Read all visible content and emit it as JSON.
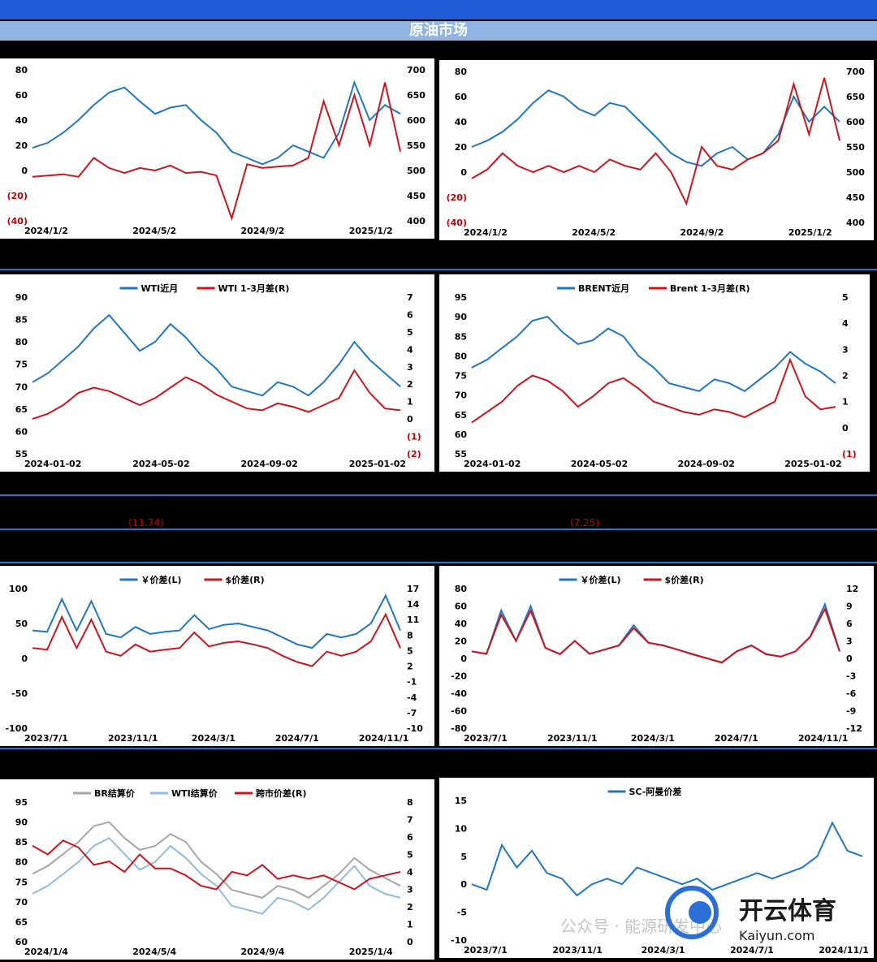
{
  "header": {
    "title": "原油市场"
  },
  "notes": {
    "left_value": "(11.74)",
    "right_value": "(7.25)"
  },
  "watermark": {
    "text": "公众号 · 能源研发中心"
  },
  "logo": {
    "text": "开云体育",
    "sub": "Kaiyun.com"
  },
  "colors": {
    "blue": "#1f77c2",
    "red": "#c8161d",
    "gray": "#a6a6a6",
    "lightblue": "#8fbbe0"
  },
  "chart_data": [
    {
      "id": "c1",
      "type": "line",
      "title": "",
      "x_ticks": [
        "2024/1/2",
        "2024/5/2",
        "2024/9/2",
        "2025/1/2"
      ],
      "y_left_ticks": [
        "80",
        "60",
        "40",
        "20",
        "0",
        "(20)",
        "(40)"
      ],
      "y_right_ticks": [
        "700",
        "650",
        "600",
        "550",
        "500",
        "450",
        "400"
      ],
      "ylim_left": [
        -40,
        80
      ],
      "ylim_right": [
        400,
        700
      ],
      "series": [
        {
          "name": "",
          "axis": "left",
          "color": "blue",
          "values": [
            18,
            22,
            30,
            40,
            52,
            62,
            66,
            55,
            45,
            50,
            52,
            40,
            30,
            15,
            10,
            5,
            10,
            20,
            15,
            10,
            30,
            70,
            40,
            52,
            45
          ]
        },
        {
          "name": "",
          "axis": "left",
          "color": "red",
          "values": [
            -5,
            -4,
            -3,
            -5,
            10,
            2,
            -2,
            2,
            0,
            4,
            -2,
            -1,
            -4,
            -38,
            5,
            2,
            3,
            4,
            10,
            55,
            20,
            60,
            20,
            70,
            15
          ]
        }
      ]
    },
    {
      "id": "c2",
      "type": "line",
      "title": "",
      "x_ticks": [
        "2024/1/2",
        "2024/5/2",
        "2024/9/2",
        "2025/1/2"
      ],
      "y_left_ticks": [
        "80",
        "60",
        "40",
        "20",
        "0",
        "(20)",
        "(40)"
      ],
      "y_right_ticks": [
        "700",
        "650",
        "600",
        "550",
        "500",
        "450",
        "400"
      ],
      "ylim_left": [
        -40,
        80
      ],
      "ylim_right": [
        400,
        700
      ],
      "series": [
        {
          "name": "",
          "axis": "left",
          "color": "blue",
          "values": [
            20,
            25,
            32,
            42,
            55,
            65,
            60,
            50,
            45,
            55,
            52,
            40,
            28,
            15,
            8,
            5,
            15,
            20,
            10,
            15,
            30,
            60,
            40,
            52,
            40
          ]
        },
        {
          "name": "",
          "axis": "left",
          "color": "red",
          "values": [
            -5,
            2,
            15,
            5,
            0,
            5,
            0,
            5,
            0,
            10,
            5,
            2,
            15,
            0,
            -25,
            20,
            5,
            2,
            10,
            15,
            25,
            70,
            30,
            75,
            25
          ]
        }
      ]
    },
    {
      "id": "c3",
      "type": "line",
      "title": "",
      "x_ticks": [
        "2024-01-02",
        "2024-05-02",
        "2024-09-02",
        "2025-01-02"
      ],
      "y_left_ticks": [
        "90",
        "85",
        "80",
        "75",
        "70",
        "65",
        "60",
        "55"
      ],
      "y_right_ticks": [
        "7",
        "6",
        "5",
        "4",
        "3",
        "2",
        "1",
        "0",
        "(1)",
        "(2)"
      ],
      "ylim_left": [
        55,
        90
      ],
      "ylim_right": [
        -2,
        7
      ],
      "legend": [
        "WTI近月",
        "WTI 1-3月差(R)"
      ],
      "series": [
        {
          "name": "WTI近月",
          "axis": "left",
          "color": "blue",
          "values": [
            71,
            73,
            76,
            79,
            83,
            86,
            82,
            78,
            80,
            84,
            81,
            77,
            74,
            70,
            69,
            68,
            71,
            70,
            68,
            71,
            75,
            80,
            76,
            73,
            70
          ]
        },
        {
          "name": "WTI 1-3月差(R)",
          "axis": "right",
          "color": "red",
          "values": [
            0,
            0.3,
            0.8,
            1.5,
            1.8,
            1.6,
            1.2,
            0.8,
            1.2,
            1.8,
            2.4,
            2.0,
            1.4,
            1.0,
            0.6,
            0.5,
            0.9,
            0.7,
            0.4,
            0.8,
            1.2,
            2.8,
            1.5,
            0.6,
            0.5
          ]
        }
      ]
    },
    {
      "id": "c4",
      "type": "line",
      "title": "",
      "x_ticks": [
        "2024-01-02",
        "2024-05-02",
        "2024-09-02",
        "2025-01-02"
      ],
      "y_left_ticks": [
        "95",
        "90",
        "85",
        "80",
        "75",
        "70",
        "65",
        "60",
        "55"
      ],
      "y_right_ticks": [
        "5",
        "4",
        "3",
        "2",
        "1",
        "0",
        "(1)"
      ],
      "ylim_left": [
        55,
        95
      ],
      "ylim_right": [
        -1,
        5
      ],
      "legend": [
        "BRENT近月",
        "Brent 1-3月差(R)"
      ],
      "series": [
        {
          "name": "BRENT近月",
          "axis": "left",
          "color": "blue",
          "values": [
            77,
            79,
            82,
            85,
            89,
            90,
            86,
            83,
            84,
            87,
            85,
            80,
            77,
            73,
            72,
            71,
            74,
            73,
            71,
            74,
            77,
            81,
            78,
            76,
            73
          ]
        },
        {
          "name": "Brent 1-3月差(R)",
          "axis": "right",
          "color": "red",
          "values": [
            0.2,
            0.6,
            1.0,
            1.6,
            2.0,
            1.8,
            1.4,
            0.8,
            1.2,
            1.7,
            1.9,
            1.5,
            1.0,
            0.8,
            0.6,
            0.5,
            0.7,
            0.6,
            0.4,
            0.7,
            1.0,
            2.6,
            1.2,
            0.7,
            0.8
          ]
        }
      ]
    },
    {
      "id": "c5",
      "type": "line",
      "title": "",
      "x_ticks": [
        "2023/7/1",
        "2023/11/1",
        "2024/3/1",
        "2024/7/1",
        "2024/11/1"
      ],
      "y_left_ticks": [
        "100",
        "50",
        "0",
        "-50",
        "-100"
      ],
      "y_right_ticks": [
        "17",
        "14",
        "11",
        "8",
        "5",
        "2",
        "-1",
        "-4",
        "-7",
        "-10"
      ],
      "ylim_left": [
        -100,
        100
      ],
      "ylim_right": [
        -10,
        17
      ],
      "legend": [
        "￥价差(L)",
        "$价差(R)"
      ],
      "series": [
        {
          "name": "￥价差(L)",
          "axis": "left",
          "color": "blue",
          "values": [
            40,
            38,
            85,
            40,
            82,
            35,
            30,
            45,
            35,
            38,
            40,
            62,
            42,
            48,
            50,
            45,
            40,
            30,
            20,
            15,
            35,
            30,
            35,
            50,
            90,
            40
          ]
        },
        {
          "name": "$价差(R)",
          "axis": "right",
          "color": "red",
          "values": [
            5.5,
            5.2,
            11.5,
            5.5,
            11,
            4.8,
            4.0,
            6.2,
            4.8,
            5.2,
            5.5,
            8.5,
            5.8,
            6.5,
            6.8,
            6.2,
            5.5,
            4.0,
            2.8,
            2.0,
            4.8,
            4.0,
            4.8,
            6.8,
            12,
            5.5
          ]
        }
      ]
    },
    {
      "id": "c6",
      "type": "line",
      "title": "",
      "x_ticks": [
        "2023/7/1",
        "2023/11/1",
        "2024/3/1",
        "2024/7/1",
        "2024/11/1"
      ],
      "y_left_ticks": [
        "80",
        "60",
        "40",
        "20",
        "0",
        "-20",
        "-40",
        "-60",
        "-80"
      ],
      "y_right_ticks": [
        "12",
        "9",
        "6",
        "3",
        "0",
        "-3",
        "-6",
        "-9",
        "-12"
      ],
      "ylim_left": [
        -80,
        80
      ],
      "ylim_right": [
        -12,
        12
      ],
      "legend": [
        "￥价差(L)",
        "$价差(R)"
      ],
      "series": [
        {
          "name": "￥价差(L)",
          "axis": "left",
          "color": "blue",
          "values": [
            8,
            5,
            55,
            20,
            60,
            12,
            5,
            20,
            5,
            10,
            15,
            38,
            18,
            15,
            10,
            5,
            0,
            -5,
            8,
            15,
            5,
            2,
            8,
            25,
            62,
            8
          ]
        },
        {
          "name": "$价差(R)",
          "axis": "right",
          "color": "red",
          "values": [
            1.2,
            0.8,
            7.5,
            3.0,
            8.2,
            1.8,
            0.7,
            3.0,
            0.8,
            1.5,
            2.2,
            5.2,
            2.7,
            2.2,
            1.5,
            0.7,
            0,
            -0.7,
            1.2,
            2.2,
            0.7,
            0.3,
            1.2,
            3.7,
            8.5,
            1.2
          ]
        }
      ]
    },
    {
      "id": "c7",
      "type": "line",
      "title": "",
      "x_ticks": [
        "2024/1/4",
        "2024/5/4",
        "2024/9/4",
        "2025/1/4"
      ],
      "y_left_ticks": [
        "95",
        "90",
        "85",
        "80",
        "75",
        "70",
        "65",
        "60"
      ],
      "y_right_ticks": [
        "8",
        "7",
        "6",
        "5",
        "4",
        "3",
        "2",
        "1",
        "0"
      ],
      "ylim_left": [
        60,
        95
      ],
      "ylim_right": [
        0,
        8
      ],
      "legend": [
        "BR结算价",
        "WTI结算价",
        "跨市价差(R)"
      ],
      "series": [
        {
          "name": "BR结算价",
          "axis": "left",
          "color": "gray",
          "values": [
            77,
            79,
            82,
            85,
            89,
            90,
            86,
            83,
            84,
            87,
            85,
            80,
            77,
            73,
            72,
            71,
            74,
            73,
            71,
            74,
            77,
            81,
            78,
            76,
            74
          ]
        },
        {
          "name": "WTI结算价",
          "axis": "left",
          "color": "lightblue",
          "values": [
            72,
            74,
            77,
            80,
            84,
            86,
            82,
            78,
            80,
            84,
            81,
            77,
            74,
            69,
            68,
            67,
            71,
            70,
            68,
            71,
            75,
            79,
            74,
            72,
            71
          ]
        },
        {
          "name": "跨市价差(R)",
          "axis": "right",
          "color": "red",
          "values": [
            5.5,
            5.0,
            5.8,
            5.4,
            4.4,
            4.6,
            4.0,
            5.0,
            4.2,
            4.2,
            3.8,
            3.2,
            3.0,
            4.0,
            3.8,
            4.4,
            3.6,
            3.8,
            3.6,
            3.8,
            3.4,
            3.0,
            3.6,
            3.8,
            4.0
          ]
        }
      ]
    },
    {
      "id": "c8",
      "type": "line",
      "title": "",
      "x_ticks": [
        "2023/7/1",
        "2023/11/1",
        "2024/3/1",
        "2024/7/1",
        "2024/11/1"
      ],
      "y_left_ticks": [
        "15",
        "10",
        "5",
        "0",
        "-5",
        "-10"
      ],
      "ylim_left": [
        -10,
        15
      ],
      "legend": [
        "SC-阿曼价差"
      ],
      "series": [
        {
          "name": "SC-阿曼价差",
          "axis": "left",
          "color": "blue",
          "values": [
            0,
            -1,
            7,
            3,
            6,
            2,
            1,
            -2,
            0,
            1,
            0,
            3,
            2,
            1,
            0,
            1,
            -1,
            0,
            1,
            2,
            1,
            2,
            3,
            5,
            11,
            6,
            5
          ]
        }
      ]
    }
  ]
}
